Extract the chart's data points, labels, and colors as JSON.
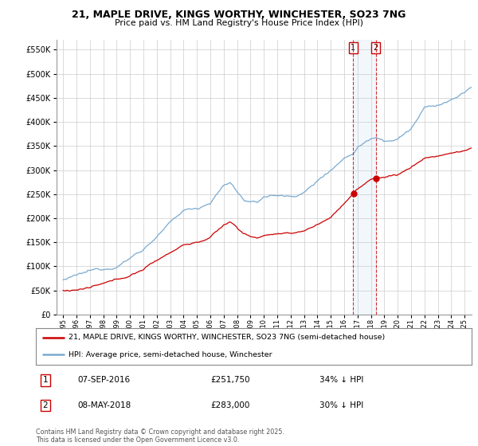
{
  "title_line1": "21, MAPLE DRIVE, KINGS WORTHY, WINCHESTER, SO23 7NG",
  "title_line2": "Price paid vs. HM Land Registry's House Price Index (HPI)",
  "ylabel_ticks": [
    0,
    50000,
    100000,
    150000,
    200000,
    250000,
    300000,
    350000,
    400000,
    450000,
    500000,
    550000
  ],
  "ylim": [
    0,
    570000
  ],
  "xlim_min": 1994.5,
  "xlim_max": 2025.5,
  "line1_label": "21, MAPLE DRIVE, KINGS WORTHY, WINCHESTER, SO23 7NG (semi-detached house)",
  "line1_color": "#cc0000",
  "line2_label": "HPI: Average price, semi-detached house, Winchester",
  "line2_color": "#7aaad0",
  "marker1_date": "07-SEP-2016",
  "marker1_price": 251750,
  "marker1_pct": "34% ↓ HPI",
  "marker1_x": 2016.68,
  "marker2_date": "08-MAY-2018",
  "marker2_price": 283000,
  "marker2_pct": "30% ↓ HPI",
  "marker2_x": 2018.36,
  "copyright_text": "Contains HM Land Registry data © Crown copyright and database right 2025.\nThis data is licensed under the Open Government Licence v3.0.",
  "background_color": "#ffffff",
  "grid_color": "#cccccc",
  "shade_color": "#ddeeff"
}
